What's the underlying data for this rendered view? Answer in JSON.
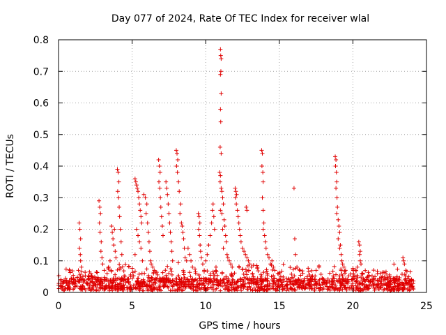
{
  "chart_data": {
    "type": "scatter",
    "title": "Day 077 of 2024, Rate Of TEC Index for receiver wlal",
    "xlabel": "GPS time / hours",
    "ylabel": "ROTI / TECUs",
    "xlim": [
      0,
      25
    ],
    "ylim": [
      0,
      0.8
    ],
    "xticks": [
      0,
      5,
      10,
      15,
      20,
      25
    ],
    "yticks": [
      0,
      0.1,
      0.2,
      0.3,
      0.4,
      0.5,
      0.6,
      0.7,
      0.8
    ],
    "grid": true,
    "marker": "+",
    "color": "#e00000",
    "series": [
      {
        "name": "ROTI",
        "points": [
          [
            1.4,
            0.22
          ],
          [
            1.45,
            0.2
          ],
          [
            1.5,
            0.17
          ],
          [
            1.42,
            0.14
          ],
          [
            1.48,
            0.12
          ],
          [
            1.5,
            0.1
          ],
          [
            1.55,
            0.08
          ],
          [
            1.35,
            0.07
          ],
          [
            2.1,
            0.065
          ],
          [
            2.2,
            0.06
          ],
          [
            2.75,
            0.29
          ],
          [
            2.8,
            0.27
          ],
          [
            2.85,
            0.25
          ],
          [
            2.78,
            0.22
          ],
          [
            2.82,
            0.19
          ],
          [
            2.9,
            0.16
          ],
          [
            2.88,
            0.13
          ],
          [
            2.95,
            0.11
          ],
          [
            3.0,
            0.09
          ],
          [
            3.1,
            0.07
          ],
          [
            3.6,
            0.21
          ],
          [
            3.65,
            0.19
          ],
          [
            3.7,
            0.17
          ],
          [
            3.75,
            0.15
          ],
          [
            3.8,
            0.2
          ],
          [
            3.85,
            0.13
          ],
          [
            3.9,
            0.11
          ],
          [
            3.5,
            0.1
          ],
          [
            3.4,
            0.08
          ],
          [
            3.3,
            0.06
          ],
          [
            4.0,
            0.39
          ],
          [
            4.05,
            0.38
          ],
          [
            4.1,
            0.35
          ],
          [
            4.02,
            0.32
          ],
          [
            4.08,
            0.3
          ],
          [
            4.12,
            0.27
          ],
          [
            4.15,
            0.24
          ],
          [
            4.2,
            0.2
          ],
          [
            4.25,
            0.16
          ],
          [
            4.3,
            0.12
          ],
          [
            5.2,
            0.36
          ],
          [
            5.25,
            0.35
          ],
          [
            5.3,
            0.34
          ],
          [
            5.35,
            0.33
          ],
          [
            5.4,
            0.32
          ],
          [
            5.45,
            0.3
          ],
          [
            5.5,
            0.28
          ],
          [
            5.55,
            0.26
          ],
          [
            5.6,
            0.24
          ],
          [
            5.65,
            0.22
          ],
          [
            5.3,
            0.2
          ],
          [
            5.4,
            0.18
          ],
          [
            5.5,
            0.16
          ],
          [
            5.6,
            0.14
          ],
          [
            5.2,
            0.12
          ],
          [
            5.7,
            0.1
          ],
          [
            5.8,
            0.31
          ],
          [
            5.9,
            0.3
          ],
          [
            6.0,
            0.28
          ],
          [
            5.95,
            0.25
          ],
          [
            6.05,
            0.22
          ],
          [
            6.1,
            0.19
          ],
          [
            6.15,
            0.16
          ],
          [
            6.2,
            0.13
          ],
          [
            6.25,
            0.1
          ],
          [
            6.3,
            0.09
          ],
          [
            6.4,
            0.08
          ],
          [
            6.5,
            0.07
          ],
          [
            6.6,
            0.065
          ],
          [
            6.45,
            0.06
          ],
          [
            6.8,
            0.42
          ],
          [
            6.85,
            0.4
          ],
          [
            6.9,
            0.38
          ],
          [
            6.82,
            0.35
          ],
          [
            6.88,
            0.33
          ],
          [
            6.92,
            0.3
          ],
          [
            6.95,
            0.27
          ],
          [
            7.0,
            0.24
          ],
          [
            7.05,
            0.21
          ],
          [
            7.1,
            0.18
          ],
          [
            7.3,
            0.35
          ],
          [
            7.35,
            0.33
          ],
          [
            7.4,
            0.31
          ],
          [
            7.45,
            0.28
          ],
          [
            7.5,
            0.25
          ],
          [
            7.55,
            0.22
          ],
          [
            7.6,
            0.19
          ],
          [
            7.65,
            0.16
          ],
          [
            7.7,
            0.13
          ],
          [
            7.75,
            0.1
          ],
          [
            8.0,
            0.45
          ],
          [
            8.05,
            0.44
          ],
          [
            8.1,
            0.42
          ],
          [
            8.02,
            0.4
          ],
          [
            8.08,
            0.38
          ],
          [
            8.15,
            0.35
          ],
          [
            8.2,
            0.32
          ],
          [
            8.3,
            0.28
          ],
          [
            8.25,
            0.25
          ],
          [
            8.35,
            0.22
          ],
          [
            8.4,
            0.21
          ],
          [
            8.45,
            0.19
          ],
          [
            8.5,
            0.17
          ],
          [
            8.55,
            0.14
          ],
          [
            8.6,
            0.11
          ],
          [
            8.7,
            0.1
          ],
          [
            8.8,
            0.14
          ],
          [
            8.9,
            0.12
          ],
          [
            9.0,
            0.1
          ],
          [
            9.1,
            0.08
          ],
          [
            9.5,
            0.25
          ],
          [
            9.55,
            0.24
          ],
          [
            9.6,
            0.22
          ],
          [
            9.52,
            0.2
          ],
          [
            9.58,
            0.18
          ],
          [
            9.62,
            0.15
          ],
          [
            9.65,
            0.13
          ],
          [
            9.7,
            0.11
          ],
          [
            9.8,
            0.09
          ],
          [
            9.9,
            0.07
          ],
          [
            10.5,
            0.28
          ],
          [
            10.45,
            0.26
          ],
          [
            10.55,
            0.24
          ],
          [
            10.4,
            0.22
          ],
          [
            10.6,
            0.2
          ],
          [
            10.3,
            0.18
          ],
          [
            10.2,
            0.15
          ],
          [
            10.1,
            0.12
          ],
          [
            10.0,
            0.1
          ],
          [
            10.7,
            0.08
          ],
          [
            11.0,
            0.77
          ],
          [
            11.02,
            0.75
          ],
          [
            11.05,
            0.74
          ],
          [
            11.03,
            0.7
          ],
          [
            11.0,
            0.69
          ],
          [
            11.05,
            0.63
          ],
          [
            11.0,
            0.58
          ],
          [
            11.02,
            0.54
          ],
          [
            10.98,
            0.46
          ],
          [
            11.05,
            0.44
          ],
          [
            10.95,
            0.38
          ],
          [
            11.0,
            0.37
          ],
          [
            10.98,
            0.35
          ],
          [
            11.05,
            0.33
          ],
          [
            11.1,
            0.32
          ],
          [
            11.15,
            0.3
          ],
          [
            11.2,
            0.28
          ],
          [
            11.0,
            0.26
          ],
          [
            11.1,
            0.25
          ],
          [
            11.25,
            0.23
          ],
          [
            11.3,
            0.21
          ],
          [
            11.15,
            0.2
          ],
          [
            11.35,
            0.18
          ],
          [
            11.4,
            0.16
          ],
          [
            11.2,
            0.14
          ],
          [
            11.45,
            0.12
          ],
          [
            11.5,
            0.11
          ],
          [
            11.6,
            0.1
          ],
          [
            11.7,
            0.09
          ],
          [
            11.8,
            0.08
          ],
          [
            12.0,
            0.33
          ],
          [
            12.05,
            0.32
          ],
          [
            12.1,
            0.31
          ],
          [
            12.02,
            0.3
          ],
          [
            12.08,
            0.28
          ],
          [
            12.15,
            0.26
          ],
          [
            12.2,
            0.24
          ],
          [
            12.25,
            0.22
          ],
          [
            12.3,
            0.2
          ],
          [
            12.35,
            0.18
          ],
          [
            12.4,
            0.16
          ],
          [
            12.5,
            0.14
          ],
          [
            12.6,
            0.13
          ],
          [
            12.7,
            0.12
          ],
          [
            12.8,
            0.11
          ],
          [
            12.9,
            0.1
          ],
          [
            13.0,
            0.09
          ],
          [
            12.75,
            0.27
          ],
          [
            12.8,
            0.26
          ],
          [
            13.1,
            0.08
          ],
          [
            13.8,
            0.45
          ],
          [
            13.85,
            0.44
          ],
          [
            13.82,
            0.4
          ],
          [
            13.88,
            0.38
          ],
          [
            13.9,
            0.35
          ],
          [
            13.85,
            0.3
          ],
          [
            13.9,
            0.26
          ],
          [
            13.95,
            0.22
          ],
          [
            13.9,
            0.2
          ],
          [
            14.0,
            0.18
          ],
          [
            14.05,
            0.16
          ],
          [
            14.1,
            0.14
          ],
          [
            14.2,
            0.12
          ],
          [
            14.3,
            0.11
          ],
          [
            14.5,
            0.1
          ],
          [
            14.4,
            0.09
          ],
          [
            14.6,
            0.08
          ],
          [
            14.7,
            0.07
          ],
          [
            14.9,
            0.06
          ],
          [
            15.1,
            0.05
          ],
          [
            16.0,
            0.33
          ],
          [
            16.05,
            0.17
          ],
          [
            16.1,
            0.12
          ],
          [
            16.2,
            0.08
          ],
          [
            16.4,
            0.07
          ],
          [
            16.6,
            0.06
          ],
          [
            16.9,
            0.05
          ],
          [
            17.2,
            0.05
          ],
          [
            17.5,
            0.07
          ],
          [
            17.7,
            0.08
          ],
          [
            18.8,
            0.43
          ],
          [
            18.85,
            0.42
          ],
          [
            18.82,
            0.4
          ],
          [
            18.88,
            0.38
          ],
          [
            18.9,
            0.35
          ],
          [
            18.85,
            0.33
          ],
          [
            18.92,
            0.3
          ],
          [
            18.95,
            0.27
          ],
          [
            18.9,
            0.25
          ],
          [
            19.0,
            0.23
          ],
          [
            19.05,
            0.21
          ],
          [
            19.1,
            0.19
          ],
          [
            19.0,
            0.17
          ],
          [
            19.15,
            0.15
          ],
          [
            19.1,
            0.14
          ],
          [
            19.2,
            0.12
          ],
          [
            19.25,
            0.1
          ],
          [
            19.3,
            0.09
          ],
          [
            19.4,
            0.08
          ],
          [
            19.5,
            0.07
          ],
          [
            20.4,
            0.16
          ],
          [
            20.45,
            0.15
          ],
          [
            20.5,
            0.13
          ],
          [
            20.45,
            0.12
          ],
          [
            20.5,
            0.1
          ],
          [
            20.55,
            0.09
          ],
          [
            20.3,
            0.08
          ],
          [
            20.2,
            0.07
          ],
          [
            20.6,
            0.06
          ],
          [
            20.0,
            0.05
          ],
          [
            21.0,
            0.05
          ],
          [
            21.5,
            0.05
          ],
          [
            22.0,
            0.05
          ],
          [
            22.5,
            0.05
          ],
          [
            23.0,
            0.05
          ],
          [
            23.4,
            0.11
          ],
          [
            23.45,
            0.1
          ],
          [
            23.5,
            0.09
          ],
          [
            23.6,
            0.07
          ],
          [
            23.8,
            0.05
          ]
        ]
      }
    ]
  }
}
